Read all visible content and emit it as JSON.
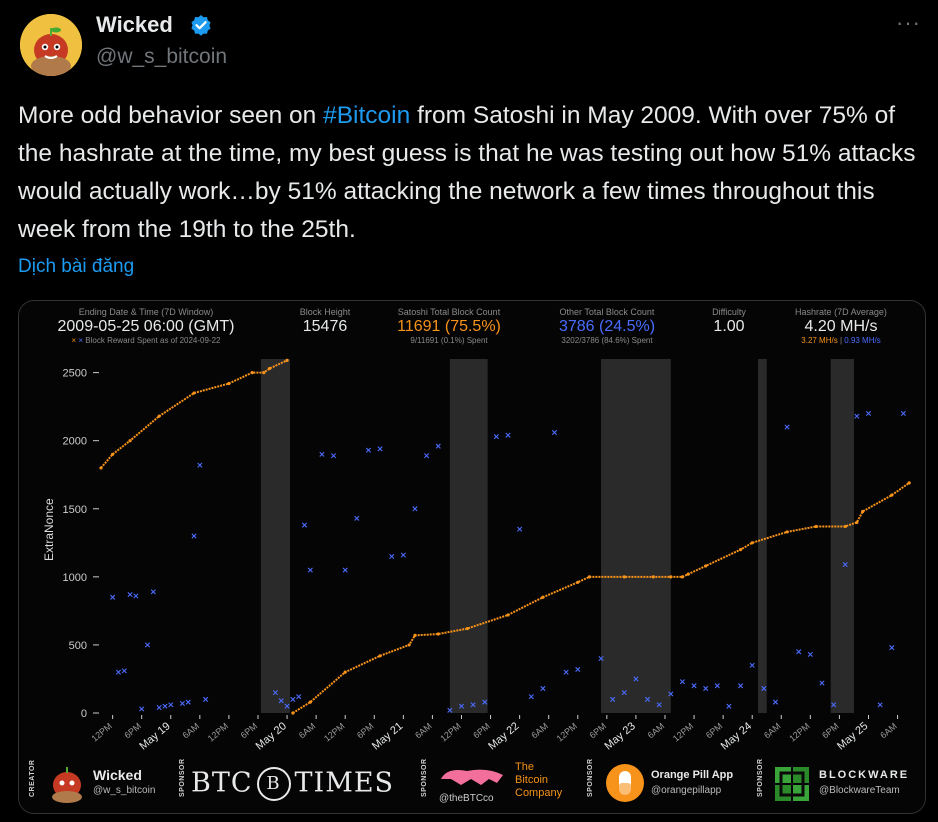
{
  "author": {
    "name": "Wicked",
    "handle": "@w_s_bitcoin",
    "more_icon": "more-dots-icon",
    "verified_icon": "verified-badge-icon"
  },
  "tweet": {
    "text_before": "More odd behavior seen on ",
    "hashtag": "#Bitcoin",
    "text_after": " from Satoshi in May 2009. With over 75% of the hashrate at the time, my best guess is that he was testing out how 51% attacks would actually work…by 51% attacking the network a few times throughout this week from the 19th to the 25th.",
    "translate_label": "Dịch bài đăng"
  },
  "card": {
    "stats": {
      "ending": {
        "label": "Ending Date & Time (7D Window)",
        "value": "2009-05-25 06:00 (GMT)",
        "sub": "Block Reward Spent as of 2024-09-22"
      },
      "height": {
        "label": "Block Height",
        "value": "15476"
      },
      "satoshi": {
        "label": "Satoshi Total Block Count",
        "value": "11691 (75.5%)",
        "sub": "9/11691 (0.1%) Spent"
      },
      "other": {
        "label": "Other Total Block Count",
        "value": "3786 (24.5%)",
        "sub": "3202/3786 (84.6%) Spent"
      },
      "difficulty": {
        "label": "Difficulty",
        "value": "1.00"
      },
      "hashrate": {
        "label": "Hashrate (7D Average)",
        "value": "4.20 MH/s",
        "sub_orange": "3.27 MH/s",
        "sub_sep": " | ",
        "sub_blue": "0.93 MH/s"
      }
    },
    "colors": {
      "satoshi": "#f7931a",
      "other": "#4a6cff",
      "shade": "#2a2a2a",
      "axis": "#cccccc"
    }
  },
  "chart_data": {
    "type": "scatter",
    "ylabel": "ExtraNonce",
    "ylim": [
      0,
      2600
    ],
    "yticks": [
      0,
      500,
      1000,
      1500,
      2000,
      2500
    ],
    "xlabels": [
      "12PM",
      "6PM",
      "May 19",
      "6AM",
      "12PM",
      "6PM",
      "May 20",
      "6AM",
      "12PM",
      "6PM",
      "May 21",
      "6AM",
      "12PM",
      "6PM",
      "May 22",
      "6AM",
      "12PM",
      "6PM",
      "May 23",
      "6AM",
      "12PM",
      "6PM",
      "May 24",
      "6AM",
      "12PM",
      "6PM",
      "May 25",
      "6AM"
    ],
    "series": [
      {
        "name": "Satoshi",
        "color": "#f7931a",
        "x": [
          0,
          2,
          5,
          10,
          16,
          22,
          26,
          28,
          29,
          32,
          33,
          36,
          42,
          48,
          53,
          54,
          58,
          63,
          70,
          76,
          82,
          84,
          90,
          95,
          98,
          100,
          101,
          104,
          110,
          112,
          118,
          123,
          128,
          130,
          131,
          136,
          139
        ],
        "y": [
          1800,
          1900,
          2000,
          2180,
          2350,
          2420,
          2500,
          2500,
          2530,
          2590,
          0,
          80,
          300,
          420,
          500,
          570,
          580,
          620,
          720,
          850,
          960,
          1000,
          1000,
          1000,
          1000,
          1000,
          1020,
          1080,
          1200,
          1250,
          1330,
          1370,
          1370,
          1400,
          1480,
          1600,
          1690
        ]
      },
      {
        "name": "Other",
        "color": "#4a6cff",
        "x": [
          2,
          3,
          4,
          5,
          6,
          7,
          8,
          9,
          10,
          11,
          12,
          14,
          15,
          16,
          17,
          18,
          30,
          31,
          32,
          33,
          34,
          35,
          36,
          38,
          40,
          42,
          44,
          46,
          48,
          50,
          52,
          54,
          56,
          58,
          60,
          62,
          64,
          66,
          68,
          70,
          72,
          74,
          76,
          78,
          80,
          82,
          86,
          88,
          90,
          92,
          94,
          96,
          98,
          100,
          102,
          104,
          106,
          108,
          110,
          112,
          114,
          116,
          118,
          120,
          122,
          124,
          126,
          128,
          130,
          132,
          134,
          136,
          138
        ],
        "y": [
          850,
          300,
          310,
          870,
          860,
          30,
          500,
          890,
          40,
          50,
          60,
          70,
          80,
          1300,
          1820,
          100,
          150,
          90,
          50,
          100,
          120,
          1380,
          1050,
          1900,
          1890,
          1050,
          1430,
          1930,
          1940,
          1150,
          1160,
          1500,
          1890,
          1960,
          20,
          50,
          60,
          80,
          2030,
          2040,
          1350,
          120,
          180,
          2060,
          300,
          320,
          400,
          100,
          150,
          250,
          100,
          60,
          140,
          230,
          200,
          180,
          200,
          50,
          200,
          350,
          180,
          80,
          2100,
          450,
          430,
          220,
          60,
          1090,
          2180,
          2200,
          60,
          480,
          2200
        ]
      }
    ]
  },
  "footer": {
    "creator_label": "CREATOR",
    "creator_name": "Wicked",
    "creator_handle": "@w_s_bitcoin",
    "sponsor_label": "SPONSOR",
    "btctimes_left": "BTC",
    "btctimes_b": "B",
    "btctimes_right": "TIMES",
    "bitcoin_co_handle": "@theBTCco",
    "bitcoin_co_line1": "The",
    "bitcoin_co_line2": "Bitcoin",
    "bitcoin_co_line3": "Company",
    "opa_name": "Orange Pill App",
    "opa_handle": "@orangepillapp",
    "blockware_name": "BLOCKWARE",
    "blockware_handle": "@BlockwareTeam"
  }
}
